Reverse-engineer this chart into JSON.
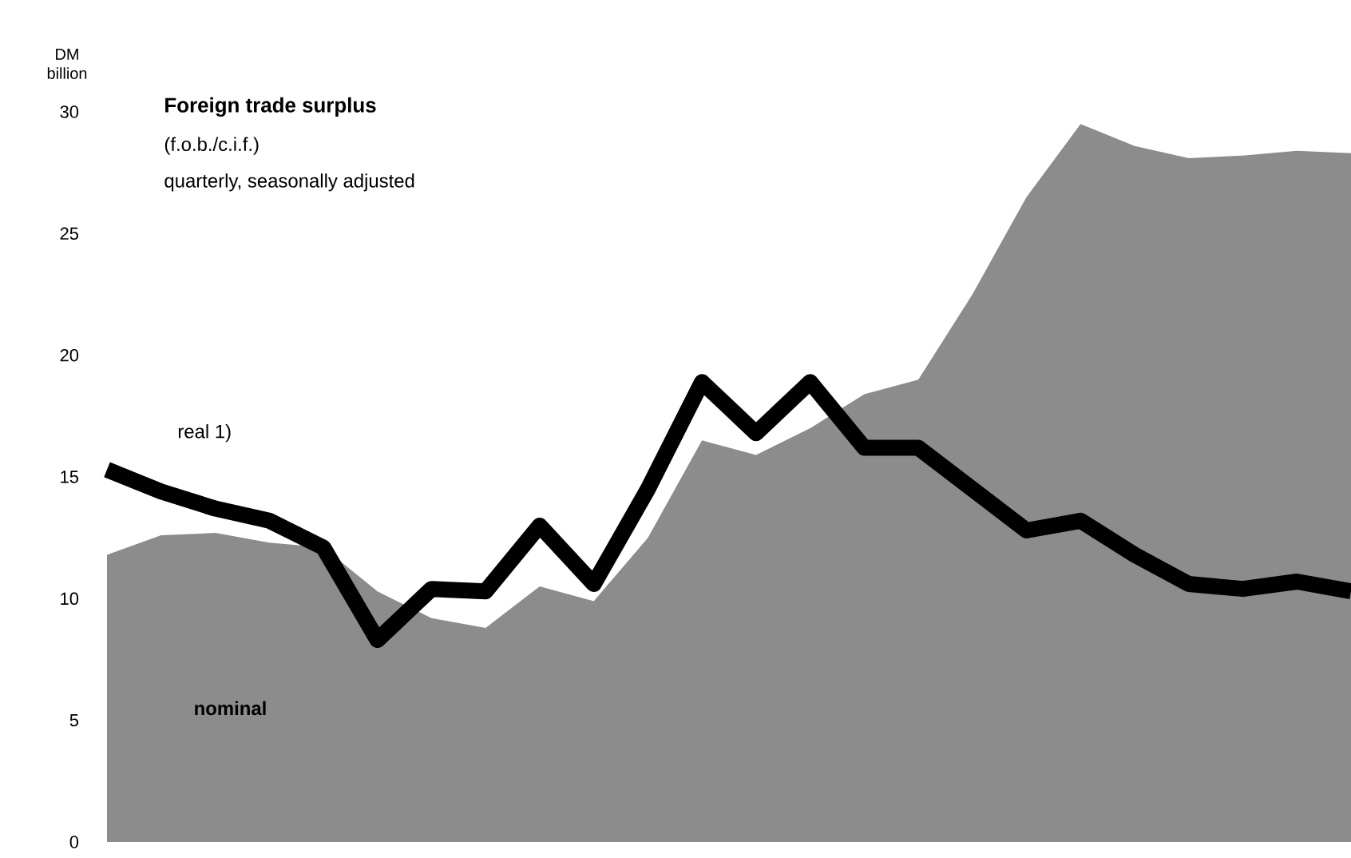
{
  "chart_data": {
    "type": "line",
    "title": "Foreign trade surplus",
    "subtitle": "(f.o.b./c.i.f.)",
    "annotations": [
      "quarterly, seasonally adjusted"
    ],
    "ylabel": "DM billion",
    "categories": [
      null,
      null,
      null,
      null,
      null,
      null,
      null,
      null,
      null,
      null,
      null,
      null,
      null,
      null,
      null,
      null,
      null,
      null,
      null,
      null,
      null,
      null,
      null,
      null
    ],
    "ylim": [
      0,
      30
    ],
    "yticks": [
      0,
      5,
      10,
      15,
      20,
      25,
      30
    ],
    "tick_labels": "y",
    "series": [
      {
        "name": "nominal",
        "type": "area",
        "color": "#8c8c8c",
        "values": [
          11.8,
          12.6,
          12.7,
          12.3,
          12.1,
          10.3,
          9.2,
          8.8,
          10.5,
          9.9,
          12.5,
          16.5,
          15.9,
          17.0,
          18.4,
          19.0,
          22.5,
          26.5,
          29.5,
          28.6,
          28.1,
          28.2,
          28.4,
          28.3
        ]
      },
      {
        "name": "real 1)",
        "color": "#000000",
        "values": [
          15.3,
          14.4,
          13.7,
          13.2,
          12.1,
          8.3,
          10.4,
          10.3,
          13.0,
          10.6,
          14.5,
          18.9,
          16.8,
          18.9,
          16.2,
          16.2,
          14.5,
          12.8,
          13.2,
          11.8,
          10.6,
          10.4,
          10.7,
          10.3
        ]
      }
    ]
  }
}
